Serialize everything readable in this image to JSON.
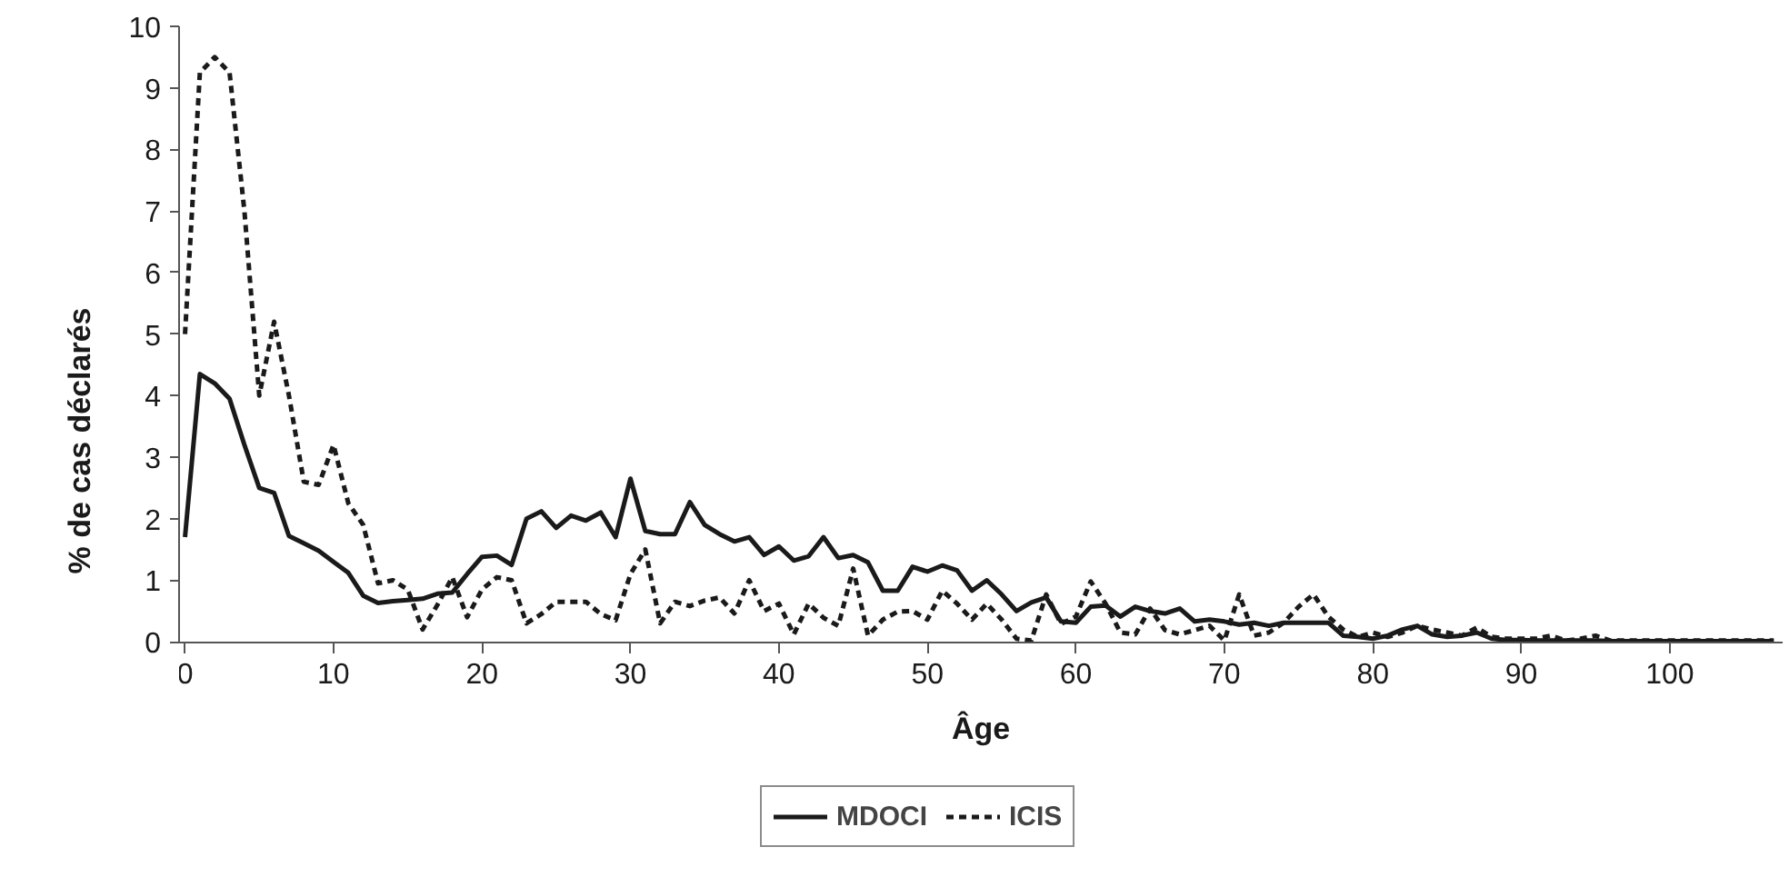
{
  "chart_data": {
    "type": "line",
    "xlabel": "Âge",
    "ylabel": "% de cas déclarés",
    "x": [
      0,
      1,
      2,
      3,
      4,
      5,
      6,
      7,
      8,
      9,
      10,
      11,
      12,
      13,
      14,
      15,
      16,
      17,
      18,
      19,
      20,
      21,
      22,
      23,
      24,
      25,
      26,
      27,
      28,
      29,
      30,
      31,
      32,
      33,
      34,
      35,
      36,
      37,
      38,
      39,
      40,
      41,
      42,
      43,
      44,
      45,
      46,
      47,
      48,
      49,
      50,
      51,
      52,
      53,
      54,
      55,
      56,
      57,
      58,
      59,
      60,
      61,
      62,
      63,
      64,
      65,
      66,
      67,
      68,
      69,
      70,
      71,
      72,
      73,
      74,
      75,
      76,
      77,
      78,
      79,
      80,
      81,
      82,
      83,
      84,
      85,
      86,
      87,
      88,
      89,
      90,
      91,
      92,
      93,
      94,
      95,
      96,
      97,
      98,
      99,
      100,
      101,
      102,
      103,
      104,
      105,
      106,
      107
    ],
    "series": [
      {
        "name": "MDOCI",
        "color": "#1a1a1a",
        "line_style": "solid",
        "values": [
          1.7,
          4.35,
          4.2,
          3.95,
          3.2,
          2.5,
          2.42,
          1.72,
          1.6,
          1.48,
          1.3,
          1.12,
          0.75,
          0.63,
          0.66,
          0.68,
          0.7,
          0.78,
          0.8,
          1.1,
          1.38,
          1.4,
          1.25,
          2.0,
          2.12,
          1.85,
          2.05,
          1.97,
          2.1,
          1.7,
          2.65,
          1.8,
          1.75,
          1.75,
          2.27,
          1.9,
          1.75,
          1.63,
          1.7,
          1.41,
          1.55,
          1.32,
          1.39,
          1.7,
          1.36,
          1.41,
          1.29,
          0.83,
          0.83,
          1.22,
          1.14,
          1.24,
          1.16,
          0.83,
          1.0,
          0.77,
          0.5,
          0.64,
          0.72,
          0.33,
          0.31,
          0.57,
          0.59,
          0.41,
          0.57,
          0.5,
          0.46,
          0.54,
          0.33,
          0.36,
          0.33,
          0.28,
          0.31,
          0.26,
          0.31,
          0.31,
          0.31,
          0.31,
          0.1,
          0.08,
          0.05,
          0.1,
          0.2,
          0.26,
          0.12,
          0.08,
          0.1,
          0.15,
          0.05,
          0.03,
          0.03,
          0.02,
          0.02,
          0.02,
          0.02,
          0.02,
          0.01,
          0.01,
          0.01,
          0.01,
          0.01,
          0.01,
          0.01,
          0.01,
          0.01,
          0.01,
          0.01,
          0.01
        ]
      },
      {
        "name": "ICIS",
        "color": "#1a1a1a",
        "line_style": "dashed",
        "values": [
          5.0,
          9.25,
          9.5,
          9.25,
          7.0,
          4.0,
          5.2,
          4.0,
          2.6,
          2.55,
          3.2,
          2.25,
          1.9,
          0.95,
          1.0,
          0.85,
          0.2,
          0.6,
          1.05,
          0.4,
          0.85,
          1.05,
          1.0,
          0.3,
          0.45,
          0.65,
          0.65,
          0.65,
          0.45,
          0.35,
          1.1,
          1.5,
          0.3,
          0.65,
          0.58,
          0.67,
          0.72,
          0.46,
          1.0,
          0.5,
          0.62,
          0.12,
          0.62,
          0.39,
          0.26,
          1.19,
          0.1,
          0.36,
          0.49,
          0.5,
          0.36,
          0.83,
          0.62,
          0.36,
          0.62,
          0.36,
          0.05,
          0.02,
          0.77,
          0.29,
          0.41,
          0.98,
          0.62,
          0.15,
          0.12,
          0.54,
          0.19,
          0.12,
          0.19,
          0.26,
          0.02,
          0.77,
          0.1,
          0.15,
          0.31,
          0.57,
          0.77,
          0.41,
          0.2,
          0.08,
          0.15,
          0.08,
          0.15,
          0.26,
          0.2,
          0.15,
          0.1,
          0.23,
          0.08,
          0.05,
          0.05,
          0.05,
          0.1,
          0.02,
          0.05,
          0.1,
          0.02,
          0.02,
          0.02,
          0.02,
          0.02,
          0.02,
          0.02,
          0.02,
          0.02,
          0.02,
          0.02,
          0.02
        ]
      }
    ],
    "xlim": [
      -0.4,
      107.6
    ],
    "xticks": [
      0,
      10,
      20,
      30,
      40,
      50,
      60,
      70,
      80,
      90,
      100
    ],
    "ylim": [
      0,
      10
    ],
    "yticks": [
      0,
      1,
      2,
      3,
      4,
      5,
      6,
      7,
      8,
      9,
      10
    ],
    "grid": false,
    "legend": "bottom"
  }
}
